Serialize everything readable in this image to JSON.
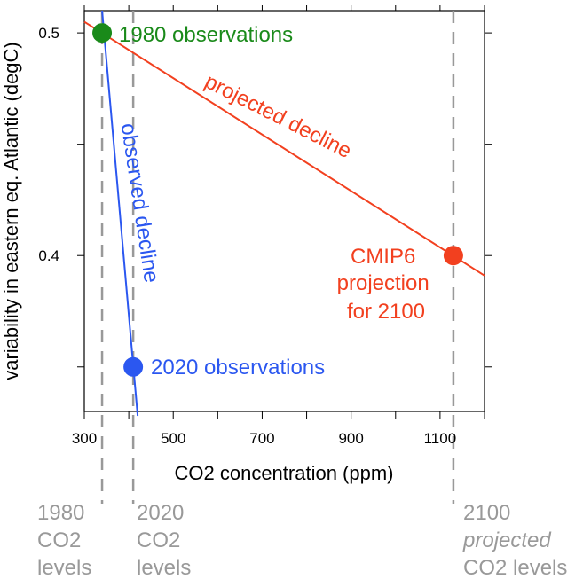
{
  "chart_data": {
    "type": "scatter",
    "xlabel": "CO2 concentration (ppm)",
    "ylabel": "variability in eastern eq. Atlantic (degC)",
    "xlim": [
      300,
      1200
    ],
    "ylim": [
      0.33,
      0.51
    ],
    "x_ticks": [
      300,
      400,
      500,
      600,
      700,
      800,
      900,
      1000,
      1100,
      1200
    ],
    "x_tick_labels": [
      {
        "value": 300,
        "label": "300"
      },
      {
        "value": 500,
        "label": "500"
      },
      {
        "value": 700,
        "label": "700"
      },
      {
        "value": 900,
        "label": "900"
      },
      {
        "value": 1100,
        "label": "1100"
      }
    ],
    "y_ticks": [
      0.35,
      0.4,
      0.45,
      0.5
    ],
    "y_tick_labels": [
      {
        "value": 0.4,
        "label": "0.4"
      },
      {
        "value": 0.5,
        "label": "0.5"
      }
    ],
    "grid": false,
    "points": [
      {
        "id": "obs-1980",
        "x": 340,
        "y": 0.5,
        "color": "#1a8a1a",
        "label": "1980 observations"
      },
      {
        "id": "obs-2020",
        "x": 410,
        "y": 0.35,
        "color": "#2b57f0",
        "label": "2020 observations"
      },
      {
        "id": "cmip6-2100",
        "x": 1130,
        "y": 0.4,
        "color": "#f2401f",
        "label_lines": [
          "CMIP6",
          "projection",
          "for 2100"
        ]
      }
    ],
    "lines": [
      {
        "id": "observed",
        "label": "observed decline",
        "color": "#2b57f0",
        "from": [
          340,
          0.51
        ],
        "to": [
          420,
          0.328
        ]
      },
      {
        "id": "projected",
        "label": "projected decline",
        "color": "#f2401f",
        "from": [
          300,
          0.505
        ],
        "to": [
          1200,
          0.391
        ]
      }
    ],
    "reference_lines": [
      {
        "id": "co2-1980",
        "x": 340,
        "label_lines": [
          "1980",
          "CO2",
          "levels"
        ]
      },
      {
        "id": "co2-2020",
        "x": 410,
        "label_lines": [
          "2020",
          "CO2",
          "levels"
        ]
      },
      {
        "id": "co2-2100",
        "x": 1130,
        "label_lines": [
          "2100",
          "projected",
          "CO2 levels"
        ]
      }
    ],
    "ref_line_color": "#999999",
    "axis_color": "#000000"
  }
}
